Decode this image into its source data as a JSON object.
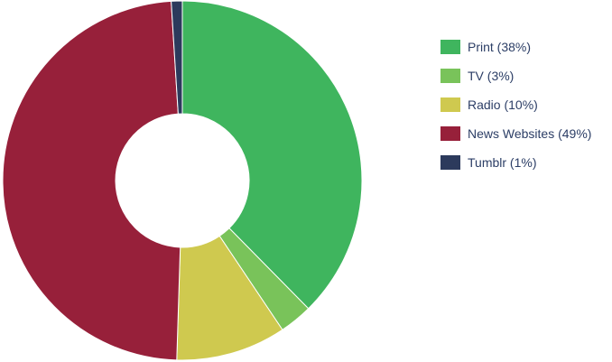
{
  "chart_data": {
    "type": "pie",
    "donut": true,
    "legend_position": "right",
    "labels": [
      "Print",
      "TV",
      "Radio",
      "News Websites",
      "Tumblr"
    ],
    "values": [
      38,
      3,
      10,
      49,
      1
    ],
    "legend_labels": [
      "Print (38%)",
      "TV (3%)",
      "Radio (10%)",
      "News Websites (49%)",
      "Tumblr (1%)"
    ],
    "colors": [
      "#3fb55e",
      "#79c35a",
      "#cfc94f",
      "#97203a",
      "#2c3a5c"
    ],
    "start_angle_deg": 0,
    "direction": "clockwise"
  }
}
